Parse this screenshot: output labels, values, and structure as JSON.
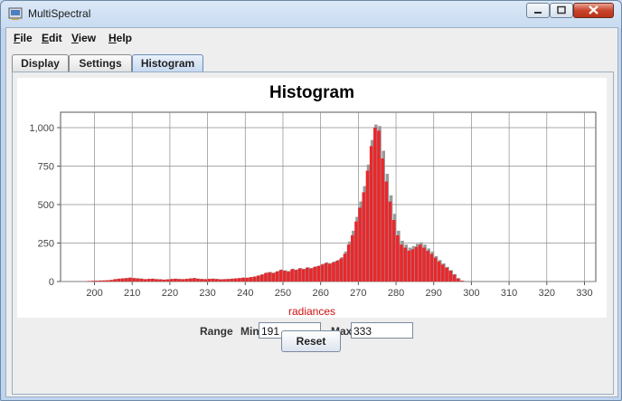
{
  "window": {
    "title": "MultiSpectral"
  },
  "menu": [
    {
      "mnemonic": "F",
      "rest": "ile"
    },
    {
      "mnemonic": "E",
      "rest": "dit"
    },
    {
      "mnemonic": "V",
      "rest": "iew"
    },
    {
      "mnemonic": "H",
      "rest": "elp"
    }
  ],
  "tabs": [
    "Display",
    "Settings",
    "Histogram"
  ],
  "active_tab": "Histogram",
  "range": {
    "label": "Range",
    "min_label": "Min",
    "min_value": "191",
    "max_label": "Max",
    "max_value": "333"
  },
  "reset_label": "Reset",
  "colors": {
    "bar_front": "#e8282c",
    "bar_back": "#9a9a9a",
    "grid": "#8c8c8c",
    "xlabel": "#d01010"
  },
  "chart_data": {
    "type": "bar",
    "title": "Histogram",
    "xlabel": "radiances",
    "ylabel": "",
    "xlim": [
      191,
      333
    ],
    "ylim": [
      0,
      1100
    ],
    "xticks": [
      200,
      210,
      220,
      230,
      240,
      250,
      260,
      270,
      280,
      290,
      300,
      310,
      320,
      330
    ],
    "yticks": [
      0,
      250,
      500,
      750,
      1000
    ],
    "ytick_labels": [
      "0",
      "250",
      "500",
      "750",
      "1,000"
    ],
    "grid": true,
    "bin_width": 1,
    "bin_start": 198,
    "series": [
      {
        "values": [
          3,
          4,
          5,
          6,
          7,
          8,
          10,
          15,
          18,
          20,
          22,
          25,
          22,
          20,
          18,
          15,
          17,
          18,
          15,
          14,
          12,
          14,
          16,
          18,
          16,
          15,
          17,
          20,
          22,
          18,
          16,
          15,
          17,
          18,
          16,
          14,
          15,
          16,
          18,
          20,
          22,
          25,
          24,
          28,
          32,
          38,
          45,
          55,
          60,
          55,
          65,
          75,
          70,
          65,
          80,
          75,
          85,
          80,
          90,
          85,
          95,
          100,
          110,
          120,
          115,
          125,
          135,
          150,
          180,
          240,
          300,
          390,
          480,
          580,
          720,
          880,
          1000,
          980,
          800,
          650,
          520,
          400,
          300,
          240,
          220,
          200,
          210,
          225,
          240,
          220,
          200,
          180,
          155,
          130,
          110,
          90,
          70,
          45,
          20,
          5
        ]
      },
      {
        "values": [
          4,
          5,
          6,
          7,
          8,
          9,
          11,
          16,
          19,
          21,
          23,
          26,
          23,
          21,
          19,
          16,
          18,
          19,
          16,
          15,
          13,
          15,
          17,
          19,
          17,
          16,
          18,
          21,
          23,
          19,
          17,
          16,
          18,
          19,
          17,
          15,
          16,
          17,
          19,
          21,
          23,
          26,
          25,
          29,
          33,
          40,
          47,
          58,
          62,
          58,
          68,
          78,
          73,
          68,
          83,
          78,
          88,
          83,
          93,
          88,
          98,
          104,
          115,
          125,
          120,
          130,
          140,
          158,
          195,
          260,
          330,
          420,
          520,
          620,
          760,
          920,
          1020,
          1010,
          850,
          700,
          560,
          440,
          330,
          265,
          240,
          220,
          230,
          245,
          255,
          240,
          215,
          195,
          165,
          140,
          118,
          95,
          74,
          48,
          22,
          6
        ]
      }
    ]
  }
}
